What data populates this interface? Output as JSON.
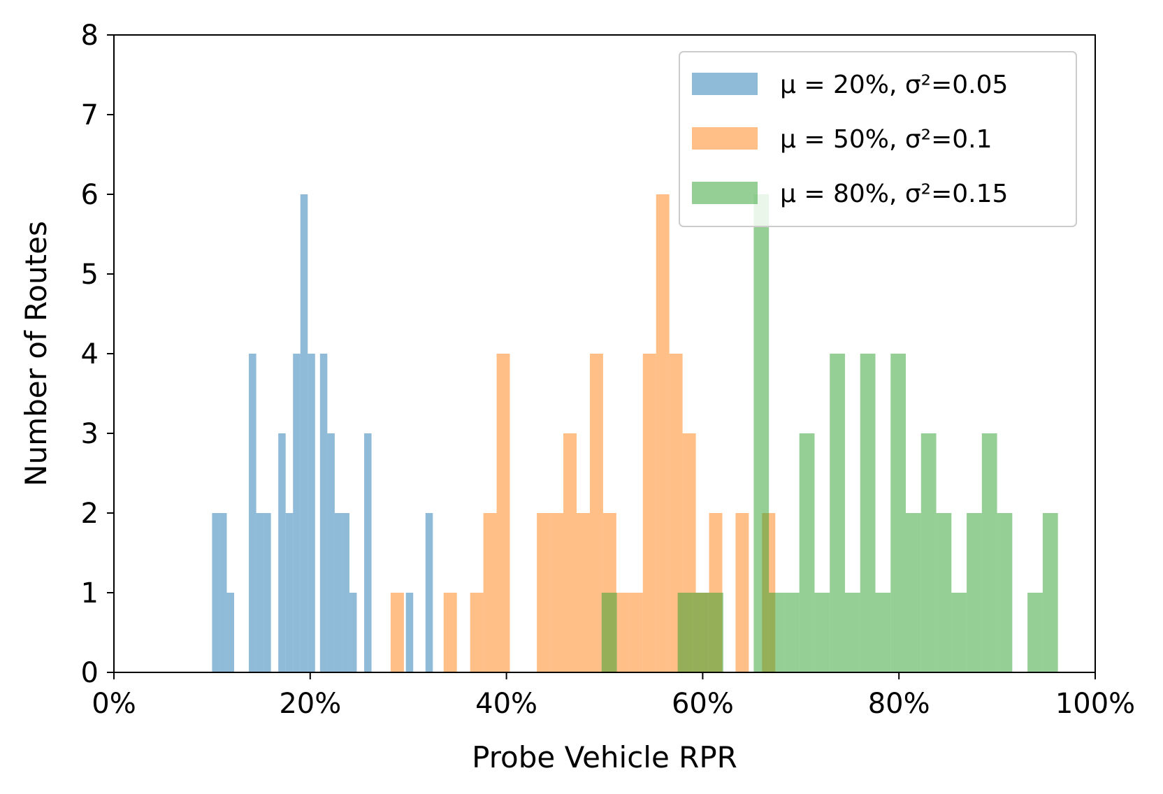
{
  "chart_data": {
    "type": "bar",
    "xlabel": "Probe Vehicle RPR",
    "ylabel": "Number of Routes",
    "xlim": [
      0,
      100
    ],
    "ylim": [
      0,
      8
    ],
    "xticks": [
      0,
      20,
      40,
      60,
      80,
      100
    ],
    "xtick_labels": [
      "0%",
      "20%",
      "40%",
      "60%",
      "80%",
      "100%"
    ],
    "yticks": [
      0,
      1,
      2,
      3,
      4,
      5,
      6,
      7,
      8
    ],
    "ytick_labels": [
      "0",
      "1",
      "2",
      "3",
      "4",
      "5",
      "6",
      "7",
      "8"
    ],
    "grid": false,
    "legend_position": "top-right",
    "series": [
      {
        "name": "μ = 20%, σ²=0.05",
        "color": "#1f77b4",
        "alpha": 0.5,
        "bin_width": 0.75,
        "bins": [
          [
            10.0,
            2
          ],
          [
            10.75,
            2
          ],
          [
            11.5,
            1
          ],
          [
            13.75,
            4
          ],
          [
            14.5,
            2
          ],
          [
            15.25,
            2
          ],
          [
            16.75,
            3
          ],
          [
            17.5,
            2
          ],
          [
            18.25,
            4
          ],
          [
            19.0,
            6
          ],
          [
            19.75,
            4
          ],
          [
            21.0,
            4
          ],
          [
            21.75,
            3
          ],
          [
            22.5,
            2
          ],
          [
            23.25,
            2
          ],
          [
            24.0,
            1
          ],
          [
            25.5,
            3
          ],
          [
            29.75,
            1
          ],
          [
            31.75,
            2
          ]
        ]
      },
      {
        "name": "μ = 50%, σ²=0.1",
        "color": "#ff7f0e",
        "alpha": 0.5,
        "bin_width": 1.35,
        "bins": [
          [
            28.2,
            1
          ],
          [
            33.6,
            1
          ],
          [
            36.3,
            1
          ],
          [
            37.65,
            2
          ],
          [
            39.0,
            4
          ],
          [
            43.1,
            2
          ],
          [
            44.45,
            2
          ],
          [
            45.8,
            3
          ],
          [
            47.15,
            2
          ],
          [
            48.5,
            4
          ],
          [
            49.85,
            2
          ],
          [
            51.2,
            1
          ],
          [
            52.55,
            1
          ],
          [
            53.9,
            4
          ],
          [
            55.25,
            6
          ],
          [
            56.6,
            4
          ],
          [
            57.95,
            3
          ],
          [
            59.3,
            1
          ],
          [
            60.65,
            2
          ],
          [
            63.35,
            2
          ],
          [
            66.05,
            2
          ]
        ]
      },
      {
        "name": "μ = 80%, σ²=0.15",
        "color": "#2ca02c",
        "alpha": 0.5,
        "bin_width": 1.55,
        "bins": [
          [
            49.7,
            1
          ],
          [
            57.45,
            1
          ],
          [
            59.0,
            1
          ],
          [
            60.55,
            1
          ],
          [
            65.2,
            6
          ],
          [
            66.75,
            1
          ],
          [
            68.3,
            1
          ],
          [
            69.85,
            3
          ],
          [
            71.4,
            1
          ],
          [
            72.95,
            4
          ],
          [
            74.5,
            1
          ],
          [
            76.05,
            4
          ],
          [
            77.6,
            1
          ],
          [
            79.15,
            4
          ],
          [
            80.7,
            2
          ],
          [
            82.25,
            3
          ],
          [
            83.8,
            2
          ],
          [
            85.35,
            1
          ],
          [
            86.9,
            2
          ],
          [
            88.45,
            3
          ],
          [
            90.0,
            2
          ],
          [
            93.1,
            1
          ],
          [
            94.65,
            2
          ]
        ]
      }
    ]
  }
}
